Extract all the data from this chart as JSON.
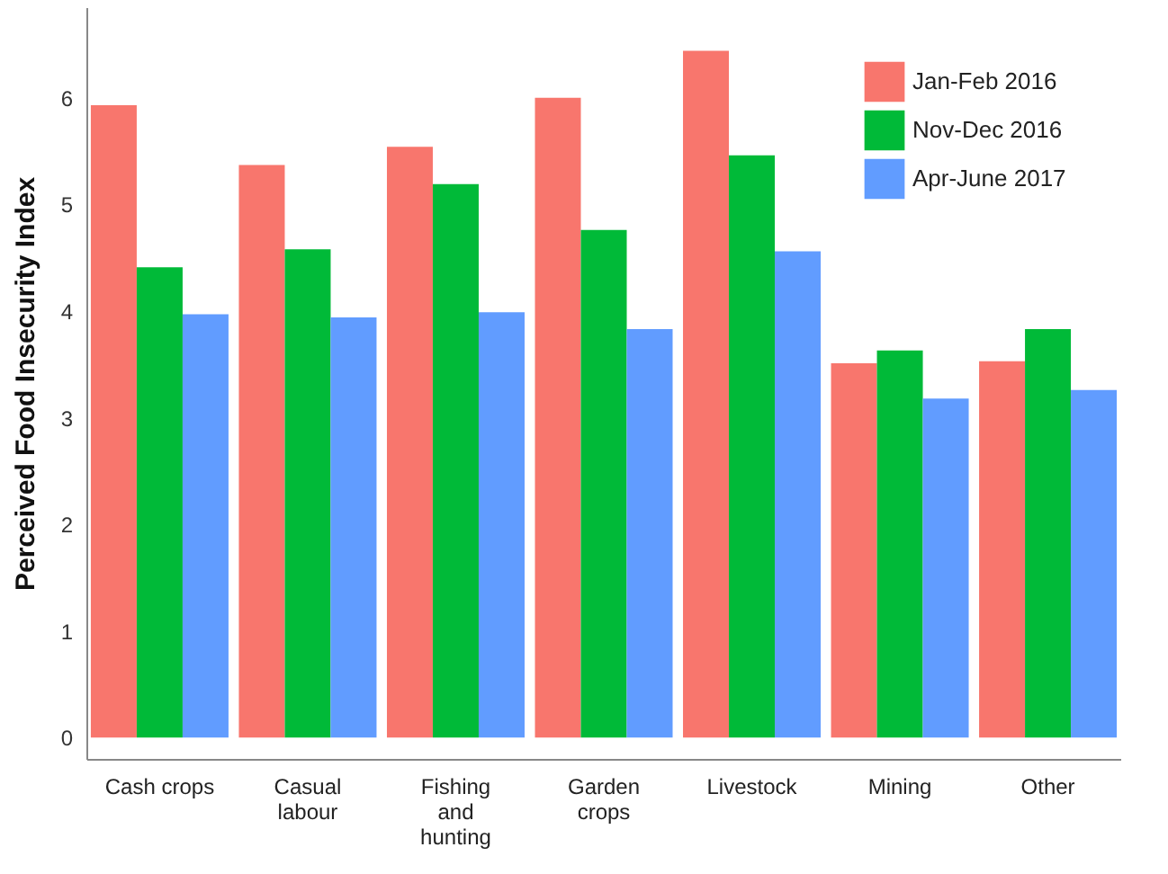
{
  "chart_data": {
    "type": "bar",
    "ylabel": "Perceived Food Insecurity Index",
    "categories": [
      "Cash crops",
      "Casual\nlabour",
      "Fishing\nand\nhunting",
      "Garden\ncrops",
      "Livestock",
      "Mining",
      "Other"
    ],
    "series": [
      {
        "name": "Jan-Feb 2016",
        "color": "#f8766d",
        "values": [
          5.93,
          5.37,
          5.54,
          6.0,
          6.44,
          3.51,
          3.53
        ]
      },
      {
        "name": "Nov-Dec 2016",
        "color": "#00ba38",
        "values": [
          4.41,
          4.58,
          5.19,
          4.76,
          5.46,
          3.63,
          3.83
        ]
      },
      {
        "name": "Apr-June 2017",
        "color": "#619cff",
        "values": [
          3.97,
          3.94,
          3.99,
          3.83,
          4.56,
          3.18,
          3.26
        ]
      }
    ],
    "ylim": [
      -0.2,
      6.85
    ],
    "yticks": [
      0,
      1,
      2,
      3,
      4,
      5,
      6
    ],
    "grid": false,
    "legend": "top right"
  }
}
